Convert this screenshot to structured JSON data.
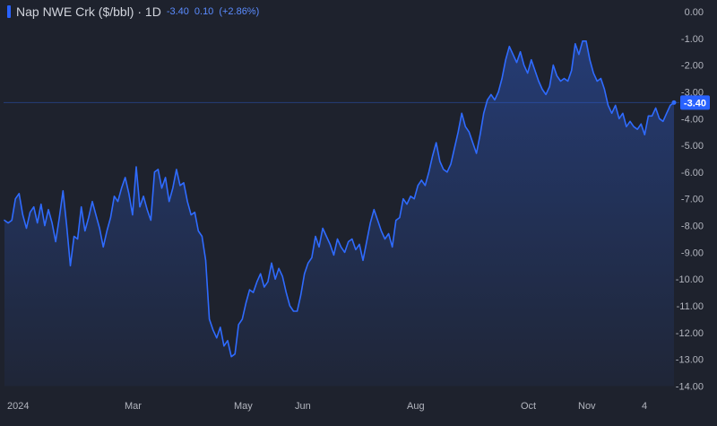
{
  "header": {
    "title": "Nap NWE Crk ($/bbl) · 1D",
    "last_value": "-3.40",
    "change": "0.10",
    "change_pct": "(+2.86%)"
  },
  "colors": {
    "background": "#1e222d",
    "line": "#2f6bff",
    "text": "#b2b5be",
    "price_label_bg": "#2962ff"
  },
  "chart_data": {
    "type": "area",
    "title": "Nap NWE Crk ($/bbl) · 1D",
    "xlabel": "",
    "ylabel": "",
    "ylim": [
      -14.0,
      0.0
    ],
    "y_ticks": [
      "0.00",
      "-1.00",
      "-2.00",
      "-3.00",
      "-4.00",
      "-5.00",
      "-6.00",
      "-7.00",
      "-8.00",
      "-9.00",
      "-10.00",
      "-11.00",
      "-12.00",
      "-13.00",
      "-14.00"
    ],
    "x_ticks": [
      "2024",
      "Mar",
      "May",
      "Jun",
      "Aug",
      "Oct",
      "Nov",
      "4"
    ],
    "last_price_label": "-3.40",
    "grid": false,
    "series": [
      {
        "values": [
          -7.8,
          -7.9,
          -7.8,
          -7.0,
          -6.8,
          -7.6,
          -8.1,
          -7.5,
          -7.3,
          -7.9,
          -7.2,
          -8.0,
          -7.4,
          -7.9,
          -8.6,
          -7.7,
          -6.7,
          -8.0,
          -9.5,
          -8.4,
          -8.5,
          -7.3,
          -8.2,
          -7.7,
          -7.1,
          -7.6,
          -8.1,
          -8.8,
          -8.2,
          -7.7,
          -6.9,
          -7.1,
          -6.6,
          -6.2,
          -6.8,
          -7.6,
          -5.8,
          -7.3,
          -6.9,
          -7.4,
          -7.8,
          -6.0,
          -5.9,
          -6.6,
          -6.2,
          -7.1,
          -6.6,
          -5.9,
          -6.5,
          -6.4,
          -7.1,
          -7.6,
          -7.5,
          -8.2,
          -8.4,
          -9.3,
          -11.5,
          -11.9,
          -12.2,
          -11.8,
          -12.5,
          -12.3,
          -12.9,
          -12.8,
          -11.7,
          -11.5,
          -10.9,
          -10.4,
          -10.5,
          -10.1,
          -9.8,
          -10.3,
          -10.1,
          -9.4,
          -10.0,
          -9.6,
          -9.9,
          -10.5,
          -11.0,
          -11.2,
          -11.2,
          -10.6,
          -9.8,
          -9.4,
          -9.2,
          -8.4,
          -8.8,
          -8.1,
          -8.4,
          -8.7,
          -9.1,
          -8.5,
          -8.8,
          -9.0,
          -8.6,
          -8.5,
          -8.9,
          -8.7,
          -9.3,
          -8.6,
          -7.9,
          -7.4,
          -7.8,
          -8.2,
          -8.5,
          -8.3,
          -8.8,
          -7.8,
          -7.7,
          -7.0,
          -7.2,
          -6.9,
          -7.0,
          -6.5,
          -6.3,
          -6.5,
          -6.0,
          -5.4,
          -4.9,
          -5.6,
          -5.9,
          -6.0,
          -5.7,
          -5.1,
          -4.5,
          -3.8,
          -4.3,
          -4.5,
          -4.9,
          -5.3,
          -4.6,
          -3.8,
          -3.3,
          -3.1,
          -3.3,
          -3.0,
          -2.5,
          -1.8,
          -1.3,
          -1.6,
          -1.9,
          -1.5,
          -2.0,
          -2.3,
          -1.8,
          -2.2,
          -2.6,
          -2.9,
          -3.1,
          -2.8,
          -2.0,
          -2.4,
          -2.6,
          -2.5,
          -2.6,
          -2.2,
          -1.2,
          -1.6,
          -1.1,
          -1.1,
          -1.8,
          -2.3,
          -2.6,
          -2.5,
          -2.9,
          -3.5,
          -3.8,
          -3.5,
          -4.0,
          -3.8,
          -4.3,
          -4.1,
          -4.3,
          -4.4,
          -4.2,
          -4.6,
          -3.9,
          -3.9,
          -3.6,
          -4.0,
          -4.1,
          -3.8,
          -3.5,
          -3.4
        ]
      }
    ]
  }
}
